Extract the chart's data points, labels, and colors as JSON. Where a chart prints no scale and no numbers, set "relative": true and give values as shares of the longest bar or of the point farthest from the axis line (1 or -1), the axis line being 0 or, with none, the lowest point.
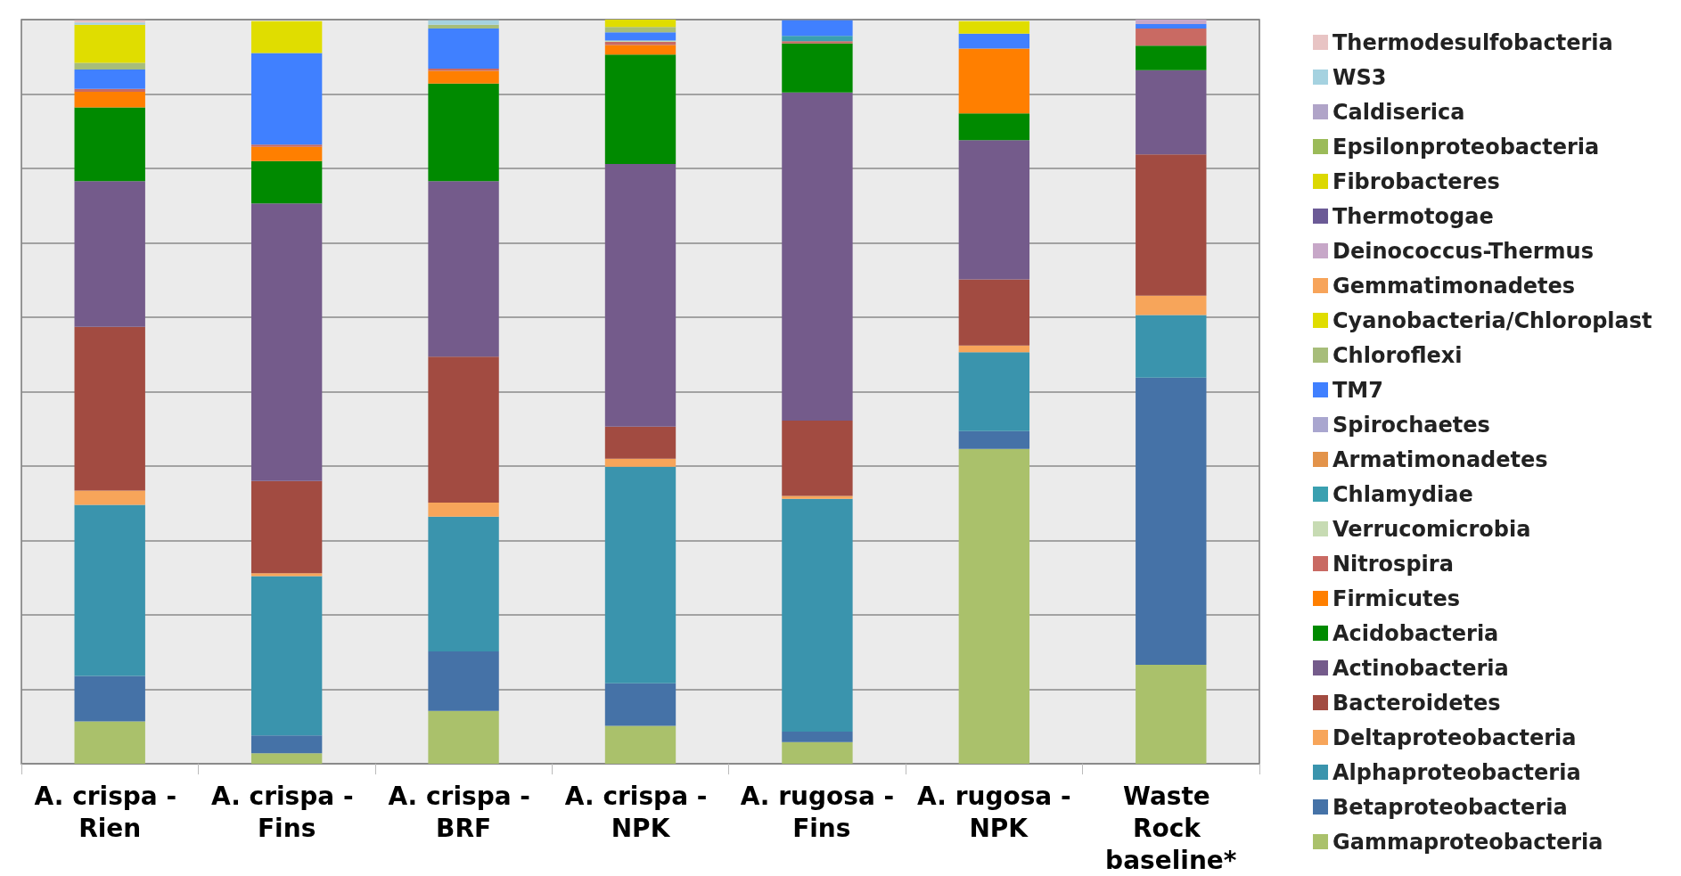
{
  "chart_data": {
    "type": "bar",
    "stacked": true,
    "relative": true,
    "grid": true,
    "legend": "right",
    "categories": [
      "A. crispa - Rien",
      "A. crispa - Fins",
      "A. crispa - BRF",
      "A. crispa - NPK",
      "A. rugosa - Fins",
      "A. rugosa - NPK",
      "Waste Rock baseline*"
    ],
    "series": [
      {
        "name": "Gammaproteobacteria",
        "color": "#aac16b",
        "values": [
          0.057,
          0.014,
          0.071,
          0.051,
          0.029,
          0.423,
          0.133
        ]
      },
      {
        "name": "Betaproteobacteria",
        "color": "#4572a7",
        "values": [
          0.061,
          0.024,
          0.08,
          0.057,
          0.014,
          0.024,
          0.386
        ]
      },
      {
        "name": "Alphaproteobacteria",
        "color": "#3a94ad",
        "values": [
          0.23,
          0.214,
          0.181,
          0.291,
          0.313,
          0.106,
          0.084
        ]
      },
      {
        "name": "Deltaproteobacteria",
        "color": "#f7a55a",
        "values": [
          0.019,
          0.004,
          0.019,
          0.011,
          0.004,
          0.009,
          0.026
        ]
      },
      {
        "name": "Bacteroidetes",
        "color": "#a24b41",
        "values": [
          0.22,
          0.124,
          0.196,
          0.043,
          0.101,
          0.089,
          0.19
        ]
      },
      {
        "name": "Actinobacteria",
        "color": "#745b8b",
        "values": [
          0.196,
          0.373,
          0.236,
          0.353,
          0.441,
          0.187,
          0.113
        ]
      },
      {
        "name": "Acidobacteria",
        "color": "#008a00",
        "values": [
          0.099,
          0.057,
          0.131,
          0.147,
          0.066,
          0.036,
          0.033
        ]
      },
      {
        "name": "Firmicutes",
        "color": "#ff7f00",
        "values": [
          0.021,
          0.019,
          0.017,
          0.013,
          0,
          0.087,
          0
        ]
      },
      {
        "name": "Nitrospira",
        "color": "#c96a63",
        "values": [
          0.004,
          0.003,
          0.003,
          0.004,
          0.003,
          0,
          0.023
        ]
      },
      {
        "name": "Verrucomicrobia",
        "color": "#c7dbb3",
        "values": [
          0,
          0,
          0,
          0.002,
          0,
          0,
          0
        ]
      },
      {
        "name": "Chlamydiae",
        "color": "#3aa0b0",
        "values": [
          0,
          0,
          0,
          0,
          0.007,
          0,
          0
        ]
      },
      {
        "name": "Armatimonadetes",
        "color": "#e3934a",
        "values": [
          0,
          0,
          0,
          0,
          0,
          0,
          0
        ]
      },
      {
        "name": "Spirochaetes",
        "color": "#a9a6cf",
        "values": [
          0,
          0,
          0,
          0,
          0,
          0,
          0
        ]
      },
      {
        "name": "TM7",
        "color": "#4080ff",
        "values": [
          0.026,
          0.123,
          0.054,
          0.011,
          0.021,
          0.02,
          0.006
        ]
      },
      {
        "name": "Chloroflexi",
        "color": "#a7bd7a",
        "values": [
          0.009,
          0,
          0.005,
          0.007,
          0,
          0,
          0
        ]
      },
      {
        "name": "Cyanobacteria/Chloroplast",
        "color": "#e0dd00",
        "values": [
          0.051,
          0.043,
          0,
          0.01,
          0,
          0.017,
          0
        ]
      },
      {
        "name": "Gemmatimonadetes",
        "color": "#f7a45a",
        "values": [
          0,
          0,
          0,
          0,
          0,
          0,
          0
        ]
      },
      {
        "name": "Deinococcus-Thermus",
        "color": "#c7a7c8",
        "values": [
          0,
          0,
          0,
          0,
          0,
          0,
          0.006
        ]
      },
      {
        "name": "Thermotogae",
        "color": "#6b5a96",
        "values": [
          0,
          0,
          0,
          0,
          0,
          0,
          0
        ]
      },
      {
        "name": "Fibrobacteres",
        "color": "#dcd800",
        "values": [
          0,
          0,
          0,
          0,
          0,
          0,
          0
        ]
      },
      {
        "name": "Epsilonproteobacteria",
        "color": "#9bbb59",
        "values": [
          0,
          0,
          0,
          0,
          0,
          0,
          0
        ]
      },
      {
        "name": "Caldiserica",
        "color": "#b0a4c8",
        "values": [
          0,
          0,
          0,
          0,
          0,
          0,
          0
        ]
      },
      {
        "name": "WS3",
        "color": "#a5d2e0",
        "values": [
          0.003,
          0,
          0.006,
          0,
          0,
          0,
          0
        ]
      },
      {
        "name": "Thermodesulfobacteria",
        "color": "#e8c4c4",
        "values": [
          0.003,
          0,
          0,
          0,
          0,
          0,
          0
        ]
      }
    ]
  }
}
